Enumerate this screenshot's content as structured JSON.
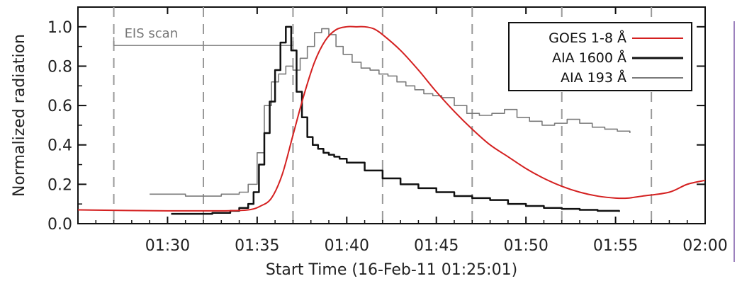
{
  "chart_data": {
    "type": "line",
    "title": "",
    "xlabel": "Start Time (16-Feb-11 01:25:01)",
    "ylabel": "Normalized radiation",
    "x_unit": "minutes after 01:25:01",
    "xlim": [
      0,
      35
    ],
    "ylim": [
      0,
      1.1
    ],
    "x_ticks": [
      5,
      10,
      15,
      20,
      25,
      30,
      35
    ],
    "x_tick_labels": [
      "01:30",
      "01:35",
      "01:40",
      "01:45",
      "01:50",
      "01:55",
      "02:00"
    ],
    "y_ticks": [
      0.0,
      0.2,
      0.4,
      0.6,
      0.8,
      1.0
    ],
    "y_tick_labels": [
      "0.0",
      "0.2",
      "0.4",
      "0.6",
      "0.8",
      "1.0"
    ],
    "vertical_dashed_lines_x": [
      2.0,
      12.0,
      22.0,
      32.0
    ],
    "vertical_dashed_lines_x_2": [
      7.0,
      17.0,
      27.0
    ],
    "annotation": {
      "text": "EIS scan",
      "x_range": [
        2.0,
        12.0
      ],
      "y": 0.95
    },
    "legend_position": "top-right",
    "series": [
      {
        "name": "GOES 1-8 Å",
        "color": "#d42020",
        "style": "smooth",
        "x": [
          0,
          5,
          8,
          9.5,
          10.2,
          10.8,
          11.4,
          12,
          12.6,
          13.2,
          13.8,
          14.4,
          15,
          15.5,
          16,
          16.5,
          17,
          18,
          19,
          20,
          21,
          22,
          23,
          24,
          25,
          26,
          27,
          28,
          29,
          30,
          30.7,
          31.5,
          33,
          34,
          35
        ],
        "y": [
          0.07,
          0.065,
          0.065,
          0.07,
          0.09,
          0.13,
          0.25,
          0.45,
          0.65,
          0.82,
          0.93,
          0.985,
          1.0,
          1.0,
          1.0,
          0.99,
          0.96,
          0.88,
          0.78,
          0.67,
          0.57,
          0.48,
          0.4,
          0.34,
          0.28,
          0.23,
          0.19,
          0.16,
          0.14,
          0.13,
          0.13,
          0.14,
          0.16,
          0.2,
          0.22
        ]
      },
      {
        "name": "AIA 1600 Å",
        "color": "#111111",
        "style": "step",
        "x": [
          5.2,
          6.5,
          7.5,
          8.5,
          9.0,
          9.5,
          9.8,
          10.1,
          10.4,
          10.7,
          11.0,
          11.3,
          11.6,
          11.9,
          12.2,
          12.5,
          12.8,
          13.1,
          13.4,
          13.7,
          14.0,
          14.3,
          14.6,
          15.0,
          16.0,
          17.0,
          18.0,
          19.0,
          20.0,
          21.0,
          22.0,
          23.0,
          24.0,
          25.0,
          26.0,
          27.0,
          28.0,
          29.0,
          30.2
        ],
        "y": [
          0.05,
          0.05,
          0.055,
          0.065,
          0.08,
          0.1,
          0.16,
          0.3,
          0.46,
          0.62,
          0.78,
          0.92,
          1.0,
          0.88,
          0.67,
          0.54,
          0.44,
          0.4,
          0.38,
          0.36,
          0.35,
          0.34,
          0.33,
          0.31,
          0.27,
          0.23,
          0.2,
          0.18,
          0.16,
          0.14,
          0.13,
          0.12,
          0.1,
          0.09,
          0.08,
          0.075,
          0.07,
          0.065,
          0.06
        ]
      },
      {
        "name": "AIA 193 Å",
        "color": "#7a7a7a",
        "style": "step",
        "x": [
          4.0,
          6.0,
          8.0,
          9.0,
          9.5,
          10.0,
          10.4,
          10.8,
          11.2,
          11.6,
          12.0,
          12.4,
          12.8,
          13.2,
          13.6,
          14.0,
          14.4,
          14.8,
          15.3,
          15.8,
          16.3,
          16.8,
          17.3,
          17.8,
          18.3,
          18.8,
          19.3,
          19.8,
          20.3,
          21.0,
          21.7,
          22.4,
          23.1,
          23.8,
          24.5,
          25.2,
          25.9,
          26.6,
          27.3,
          28.0,
          28.7,
          29.4,
          30.1,
          30.8
        ],
        "y": [
          0.15,
          0.14,
          0.15,
          0.16,
          0.2,
          0.36,
          0.6,
          0.72,
          0.76,
          0.8,
          0.78,
          0.84,
          0.9,
          0.97,
          0.99,
          0.96,
          0.9,
          0.86,
          0.82,
          0.79,
          0.78,
          0.76,
          0.75,
          0.72,
          0.7,
          0.68,
          0.66,
          0.65,
          0.64,
          0.6,
          0.56,
          0.55,
          0.56,
          0.58,
          0.54,
          0.52,
          0.5,
          0.51,
          0.53,
          0.51,
          0.49,
          0.48,
          0.47,
          0.46
        ]
      }
    ]
  }
}
